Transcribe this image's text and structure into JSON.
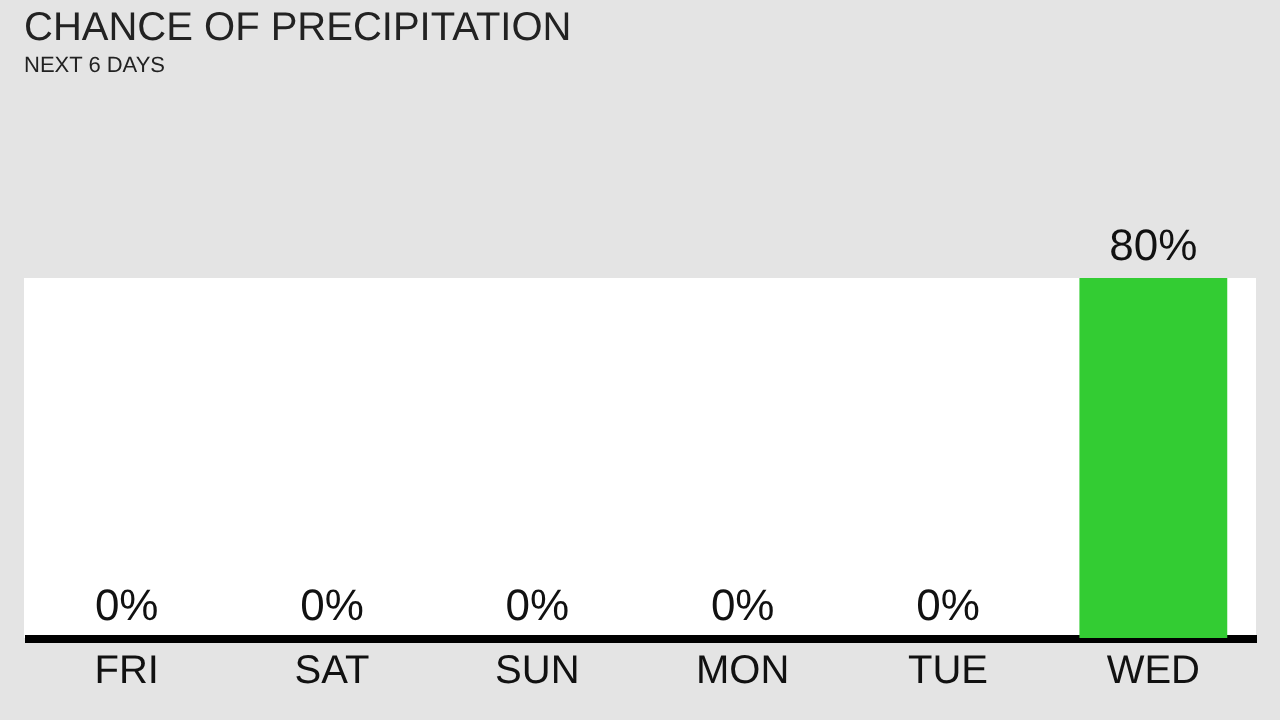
{
  "chart_data": {
    "type": "bar",
    "title": "CHANCE OF PRECIPITATION",
    "subtitle": "NEXT 6 DAYS",
    "categories": [
      "FRI",
      "SAT",
      "SUN",
      "MON",
      "TUE",
      "WED"
    ],
    "values": [
      0,
      0,
      0,
      0,
      0,
      80
    ],
    "color": "#33cc33",
    "value_labels": [
      "0%",
      "0%",
      "0%",
      "0%",
      "0%",
      "80%"
    ]
  }
}
